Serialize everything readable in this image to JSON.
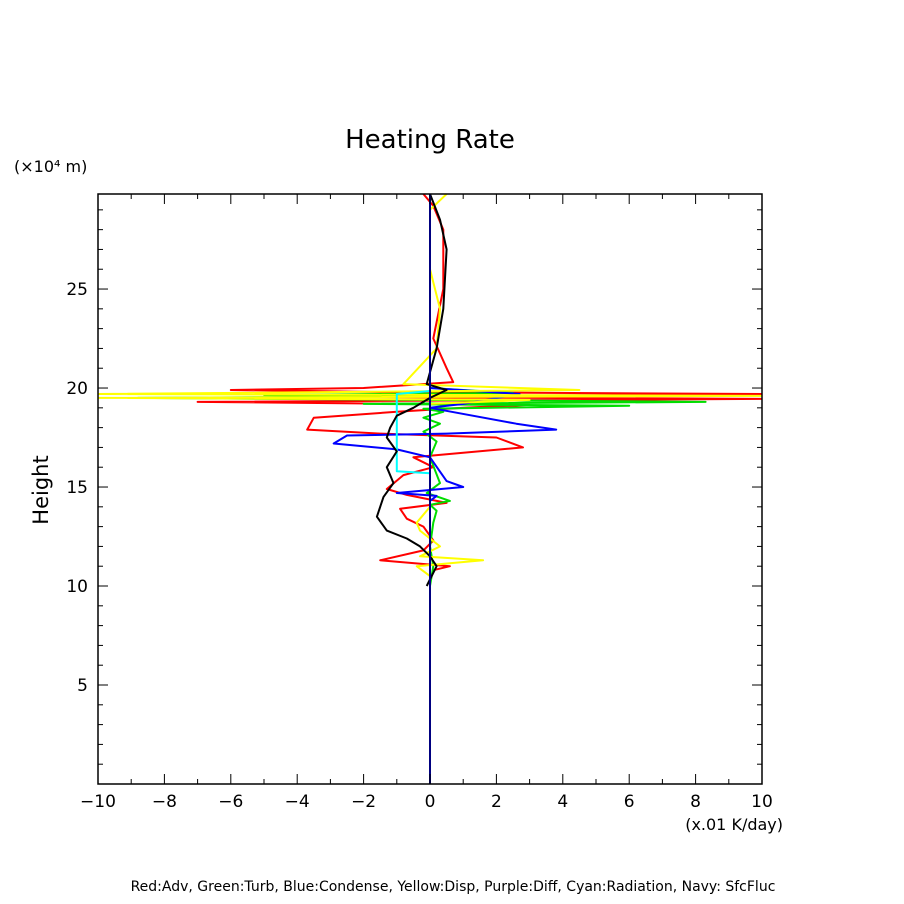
{
  "chart_data": {
    "type": "line",
    "title": "Heating Rate",
    "ylabel": "Height",
    "y_unit": "(×10⁴ m)",
    "x_unit": "(x.01 K/day)",
    "xlim": [
      -10,
      10
    ],
    "ylim": [
      0,
      29.8
    ],
    "x_ticks": [
      -10,
      -8,
      -6,
      -4,
      -2,
      0,
      2,
      4,
      6,
      8,
      10
    ],
    "x_tick_labels": [
      "−10",
      "−8",
      "−6",
      "−4",
      "−2",
      "0",
      "2",
      "4",
      "6",
      "8",
      "10"
    ],
    "y_ticks": [
      5,
      10,
      15,
      20,
      25
    ],
    "y_tick_labels": [
      "5",
      "10",
      "15",
      "20",
      "25"
    ],
    "legend_text": "Red:Adv, Green:Turb, Blue:Condense, Yellow:Disp, Purple:Diff, Cyan:Radiation, Navy: SfcFluc",
    "series": [
      {
        "name": "Adv",
        "color": "#ff0000",
        "points": [
          [
            -0.2,
            29.8
          ],
          [
            0.1,
            29.2
          ],
          [
            0.4,
            28.0
          ],
          [
            0.4,
            25.0
          ],
          [
            0.1,
            22.5
          ],
          [
            0.5,
            21.0
          ],
          [
            0.7,
            20.3
          ],
          [
            -2.0,
            20.0
          ],
          [
            -6.0,
            19.9
          ],
          [
            -1.5,
            19.8
          ],
          [
            10.0,
            19.7
          ],
          [
            -3.0,
            19.55
          ],
          [
            10.0,
            19.45
          ],
          [
            -7.0,
            19.3
          ],
          [
            3.0,
            19.15
          ],
          [
            1.0,
            19.0
          ],
          [
            -1.0,
            18.8
          ],
          [
            -3.5,
            18.5
          ],
          [
            -3.7,
            17.9
          ],
          [
            -1.5,
            17.7
          ],
          [
            2.0,
            17.5
          ],
          [
            2.8,
            17.0
          ],
          [
            -0.5,
            16.5
          ],
          [
            0.1,
            16.0
          ],
          [
            -0.8,
            15.6
          ],
          [
            -1.3,
            14.9
          ],
          [
            -0.7,
            14.6
          ],
          [
            0.5,
            14.2
          ],
          [
            -0.9,
            13.9
          ],
          [
            -0.7,
            13.4
          ],
          [
            -0.2,
            13.0
          ],
          [
            0.1,
            12.3
          ],
          [
            -0.2,
            11.8
          ],
          [
            -1.5,
            11.3
          ],
          [
            0.6,
            11.0
          ],
          [
            0.1,
            10.8
          ],
          [
            0.0,
            10.2
          ],
          [
            0.0,
            9.5
          ]
        ]
      },
      {
        "name": "Turb",
        "color": "#00dd00",
        "points": [
          [
            0.0,
            29.8
          ],
          [
            0.0,
            20.0
          ],
          [
            2.5,
            19.75
          ],
          [
            -5.0,
            19.65
          ],
          [
            2.0,
            19.6
          ],
          [
            -8.8,
            19.5
          ],
          [
            8.3,
            19.3
          ],
          [
            -2.0,
            19.2
          ],
          [
            6.0,
            19.1
          ],
          [
            -0.2,
            18.95
          ],
          [
            0.4,
            18.8
          ],
          [
            -0.2,
            18.5
          ],
          [
            0.3,
            18.2
          ],
          [
            -0.2,
            17.8
          ],
          [
            0.2,
            17.3
          ],
          [
            0.0,
            16.5
          ],
          [
            0.3,
            15.2
          ],
          [
            -0.1,
            14.7
          ],
          [
            0.6,
            14.3
          ],
          [
            0.0,
            14.1
          ],
          [
            0.2,
            13.8
          ],
          [
            0.1,
            13.2
          ],
          [
            0.0,
            12.0
          ],
          [
            0.1,
            11.0
          ],
          [
            0.0,
            10.0
          ]
        ]
      },
      {
        "name": "Condense",
        "color": "#0000ff",
        "points": [
          [
            0.0,
            29.8
          ],
          [
            0.0,
            20.0
          ],
          [
            2.7,
            19.7
          ],
          [
            1.0,
            19.2
          ],
          [
            0.0,
            19.0
          ],
          [
            2.6,
            18.2
          ],
          [
            3.8,
            17.9
          ],
          [
            0.5,
            17.7
          ],
          [
            -2.5,
            17.6
          ],
          [
            -2.9,
            17.2
          ],
          [
            -1.0,
            16.9
          ],
          [
            0.0,
            16.5
          ],
          [
            0.5,
            15.3
          ],
          [
            1.0,
            15.0
          ],
          [
            -1.0,
            14.7
          ],
          [
            0.2,
            14.55
          ],
          [
            0.0,
            14.3
          ],
          [
            0.0,
            10.0
          ]
        ]
      },
      {
        "name": "Disp",
        "color": "#ffff00",
        "points": [
          [
            0.5,
            29.8
          ],
          [
            0.0,
            29.0
          ],
          [
            0.0,
            26.0
          ],
          [
            0.3,
            24.0
          ],
          [
            0.2,
            22.0
          ],
          [
            -0.8,
            20.2
          ],
          [
            4.5,
            19.9
          ],
          [
            -10.0,
            19.7
          ],
          [
            10.0,
            19.6
          ],
          [
            -10.0,
            19.5
          ],
          [
            3.0,
            19.4
          ],
          [
            0.0,
            19.2
          ],
          [
            0.0,
            14.0
          ],
          [
            -0.4,
            13.2
          ],
          [
            -0.3,
            12.8
          ],
          [
            0.3,
            12.0
          ],
          [
            -0.3,
            11.5
          ],
          [
            1.6,
            11.3
          ],
          [
            -0.4,
            11.0
          ],
          [
            0.0,
            10.5
          ],
          [
            0.0,
            8.0
          ]
        ]
      },
      {
        "name": "Radiation",
        "color": "#00ffff",
        "points": [
          [
            0.0,
            19.85
          ],
          [
            -1.0,
            19.7
          ],
          [
            -1.0,
            15.8
          ],
          [
            0.0,
            15.7
          ]
        ]
      },
      {
        "name": "Black",
        "color": "#000000",
        "points": [
          [
            0.0,
            29.8
          ],
          [
            0.3,
            28.5
          ],
          [
            0.5,
            27.0
          ],
          [
            0.4,
            24.0
          ],
          [
            0.2,
            22.0
          ],
          [
            -0.1,
            20.2
          ],
          [
            0.5,
            19.9
          ],
          [
            0.0,
            19.5
          ],
          [
            -0.5,
            19.0
          ],
          [
            -1.0,
            18.6
          ],
          [
            -1.2,
            18.0
          ],
          [
            -1.3,
            17.5
          ],
          [
            -1.0,
            16.8
          ],
          [
            -1.3,
            16.0
          ],
          [
            -1.1,
            15.2
          ],
          [
            -1.4,
            14.5
          ],
          [
            -1.6,
            13.5
          ],
          [
            -1.3,
            12.8
          ],
          [
            -0.7,
            12.4
          ],
          [
            -0.3,
            12.0
          ],
          [
            0.0,
            11.5
          ],
          [
            0.2,
            11.0
          ],
          [
            -0.1,
            10.0
          ]
        ]
      },
      {
        "name": "SfcFluc",
        "color": "#000080",
        "points": [
          [
            0.0,
            29.8
          ],
          [
            0.0,
            0.0
          ]
        ]
      }
    ]
  }
}
